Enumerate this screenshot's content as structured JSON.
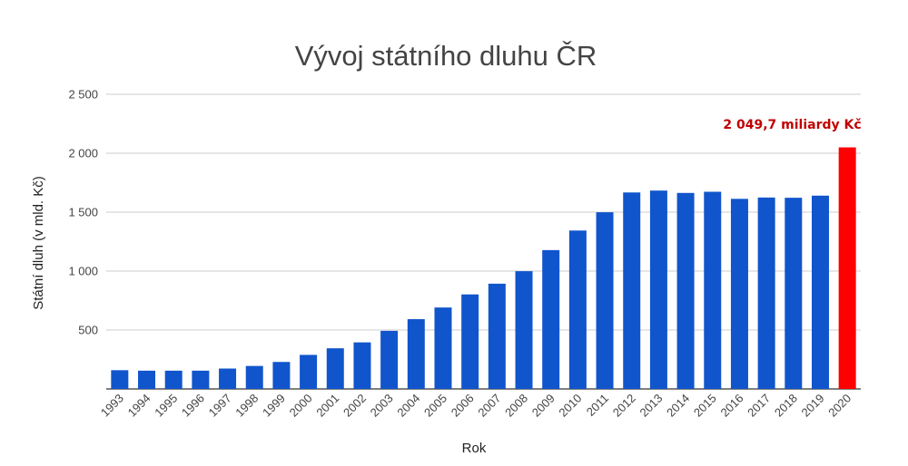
{
  "chart_data": {
    "type": "bar",
    "title": "Vývoj státního dluhu ČR",
    "xlabel": "Rok",
    "ylabel": "Státní dluh (v mld. Kč)",
    "categories": [
      "1993",
      "1994",
      "1995",
      "1996",
      "1997",
      "1998",
      "1999",
      "2000",
      "2001",
      "2002",
      "2003",
      "2004",
      "2005",
      "2006",
      "2007",
      "2008",
      "2009",
      "2010",
      "2011",
      "2012",
      "2013",
      "2014",
      "2015",
      "2016",
      "2017",
      "2018",
      "2019",
      "2020"
    ],
    "values": [
      159,
      155,
      155,
      155,
      173,
      195,
      229,
      289,
      345,
      395,
      493,
      592,
      691,
      802,
      893,
      999,
      1178,
      1344,
      1499,
      1667,
      1683,
      1663,
      1673,
      1613,
      1624,
      1622,
      1640,
      2049.7
    ],
    "ylim": [
      0,
      2500
    ],
    "yticks": [
      0,
      500,
      1000,
      1500,
      2000,
      2500
    ],
    "ytick_labels": [
      "",
      "500",
      "1 000",
      "1 500",
      "2 000",
      "2 500"
    ],
    "grid": true,
    "bar_color": "#1155cc",
    "highlight_color": "#ff0000",
    "highlight_index": 27,
    "annotation": {
      "text": "2 049,7 miliardy Kč",
      "color": "#c00000"
    }
  }
}
